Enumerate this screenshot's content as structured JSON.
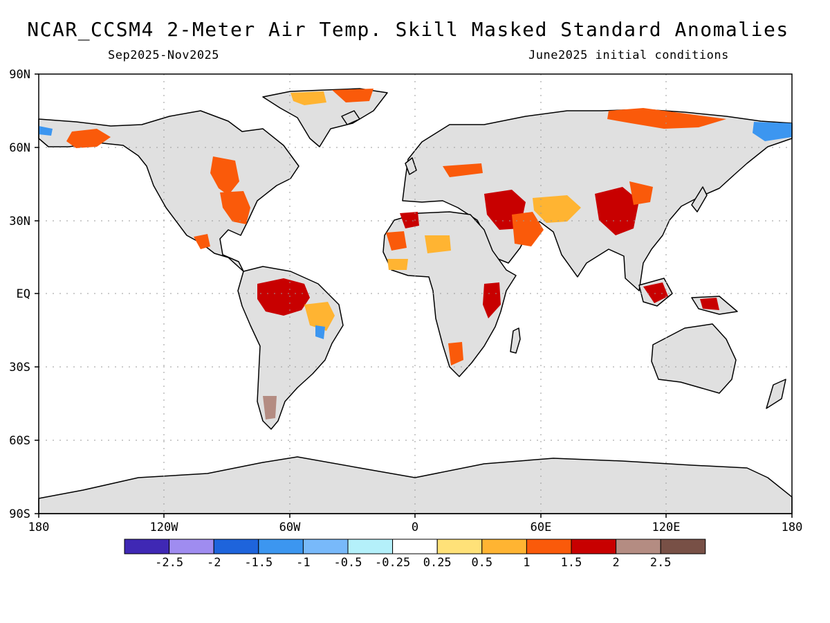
{
  "header": {
    "title": "NCAR_CCSM4 2-Meter Air Temp. Skill Masked Standard Anomalies",
    "period": "Sep2025-Nov2025",
    "init": "June2025 initial conditions"
  },
  "axes": {
    "lat_labels": [
      "90N",
      "60N",
      "30N",
      "EQ",
      "30S",
      "60S",
      "90S"
    ],
    "lon_labels": [
      "180",
      "120W",
      "60W",
      "0",
      "60E",
      "120E",
      "180"
    ]
  },
  "colors": {
    "land_masked": "#e0e0e0",
    "coast": "#000000",
    "grid": "#9a9a9a"
  },
  "legend": {
    "labels": [
      "-2.5",
      "-2",
      "-1.5",
      "-1",
      "-0.5",
      "-0.25",
      "0.25",
      "0.5",
      "1",
      "1.5",
      "2",
      "2.5"
    ],
    "colors": [
      "#3f28b4",
      "#9f8cf0",
      "#1e64dc",
      "#3c96f0",
      "#78b9fa",
      "#b4f0fa",
      "#ffffff",
      "#ffe178",
      "#ffb432",
      "#fa5a0a",
      "#c80000",
      "#b48c82",
      "#785046"
    ]
  }
}
